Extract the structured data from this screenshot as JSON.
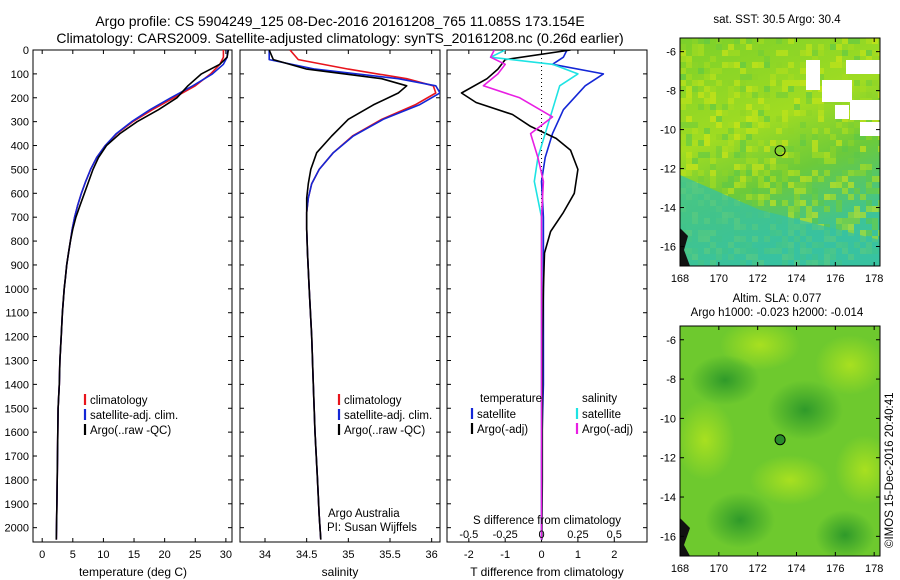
{
  "header": {
    "line1": "Argo profile: CS 5904249_125 08-Dec-2016 20161208_765 11.085S 173.154E",
    "line2": "Climatology: CARS2009. Satellite-adjusted climatology: synTS_20161208.nc (0.26d earlier)"
  },
  "colors": {
    "climatology": "#e8141c",
    "satellite": "#1427d6",
    "argo": "#000000",
    "sat_salinity": "#1ee3e3",
    "argo_salinity": "#e81fe3"
  },
  "chart_data": [
    {
      "type": "line",
      "id": "temperature",
      "xlabel": "temperature (deg C)",
      "ylabel": "",
      "xlim": [
        -1.5,
        31
      ],
      "ylim": [
        2060,
        0
      ],
      "xticks": [
        0,
        5,
        10,
        15,
        20,
        25,
        30
      ],
      "yticks": [
        0,
        100,
        200,
        300,
        400,
        500,
        600,
        700,
        800,
        900,
        1000,
        1100,
        1200,
        1300,
        1400,
        1500,
        1600,
        1700,
        1800,
        1900,
        2000
      ],
      "legend": [
        "climatology",
        "satellite-adj. clim.",
        "Argo(..raw -QC)"
      ],
      "legend_position": "lower-right",
      "series": [
        {
          "name": "climatology",
          "color_key": "climatology",
          "x": [
            29.6,
            29.6,
            29.0,
            27.5,
            25.0,
            21.5,
            18.0,
            14.8,
            12.2,
            10.3,
            8.9,
            7.9,
            7.1,
            6.4,
            5.8,
            5.3,
            4.9,
            4.6,
            4.3,
            4.0,
            3.8,
            3.6,
            3.3,
            3.1,
            2.9,
            2.8,
            2.6,
            2.5,
            2.4,
            2.3
          ],
          "y": [
            0,
            30,
            60,
            100,
            150,
            200,
            250,
            300,
            350,
            400,
            450,
            500,
            550,
            600,
            650,
            700,
            750,
            800,
            850,
            900,
            950,
            1000,
            1100,
            1200,
            1300,
            1400,
            1500,
            1700,
            1900,
            2050
          ]
        },
        {
          "name": "satellite-adj. clim.",
          "color_key": "satellite",
          "x": [
            30.3,
            30.2,
            29.6,
            27.8,
            24.6,
            21.0,
            17.6,
            14.6,
            12.1,
            10.3,
            8.9,
            7.9,
            7.1,
            6.4,
            5.8,
            5.3,
            4.9,
            4.6,
            4.3,
            4.0,
            3.8,
            3.6,
            3.3,
            3.1,
            2.9,
            2.8,
            2.6,
            2.5,
            2.4,
            2.3
          ],
          "y": [
            0,
            30,
            60,
            100,
            150,
            200,
            250,
            300,
            350,
            400,
            450,
            500,
            550,
            600,
            650,
            700,
            750,
            800,
            850,
            900,
            950,
            1000,
            1100,
            1200,
            1300,
            1400,
            1500,
            1700,
            1900,
            2050
          ]
        },
        {
          "name": "Argo(..raw -QC)",
          "color_key": "argo",
          "x": [
            30.4,
            30.2,
            29.0,
            26.0,
            23.8,
            22.0,
            19.0,
            15.5,
            12.7,
            10.5,
            9.2,
            8.3,
            7.6,
            6.9,
            6.2,
            5.5,
            5.0,
            4.6,
            4.3,
            4.0,
            3.8,
            3.6,
            3.3,
            3.1,
            2.9,
            2.8,
            2.6,
            2.5,
            2.4,
            2.3
          ],
          "y": [
            0,
            30,
            60,
            100,
            150,
            200,
            250,
            300,
            350,
            400,
            450,
            500,
            550,
            600,
            650,
            700,
            750,
            800,
            850,
            900,
            950,
            1000,
            1100,
            1200,
            1300,
            1400,
            1500,
            1700,
            1900,
            2050
          ]
        }
      ]
    },
    {
      "type": "line",
      "id": "salinity",
      "xlabel": "salinity",
      "ylabel": "",
      "xlim": [
        33.7,
        36.1
      ],
      "ylim": [
        2060,
        0
      ],
      "xticks": [
        34,
        34.5,
        35,
        35.5,
        36
      ],
      "legend": [
        "climatology",
        "satellite-adj. clim.",
        "Argo(..raw -QC)"
      ],
      "legend_position": "lower-right",
      "annotation": [
        "Argo Australia",
        "PI: Susan Wijffels"
      ],
      "series": [
        {
          "name": "climatology",
          "color_key": "climatology",
          "x": [
            34.3,
            34.4,
            35.0,
            35.7,
            36.02,
            36.05,
            35.8,
            35.4,
            35.05,
            34.82,
            34.65,
            34.56,
            34.52,
            34.5,
            34.5,
            34.51,
            34.53,
            34.56,
            34.58,
            34.6,
            34.63,
            34.65,
            34.67
          ],
          "y": [
            0,
            40,
            80,
            120,
            150,
            180,
            230,
            290,
            360,
            430,
            500,
            560,
            620,
            680,
            750,
            850,
            1000,
            1200,
            1400,
            1600,
            1800,
            1950,
            2050
          ]
        },
        {
          "name": "satellite-adj. clim.",
          "color_key": "satellite",
          "x": [
            34.05,
            34.05,
            34.6,
            35.6,
            36.05,
            36.1,
            35.85,
            35.42,
            35.06,
            34.82,
            34.65,
            34.56,
            34.52,
            34.5,
            34.5,
            34.51,
            34.53,
            34.56,
            34.58,
            34.6,
            34.63,
            34.65,
            34.67
          ],
          "y": [
            0,
            40,
            80,
            120,
            150,
            180,
            230,
            290,
            360,
            430,
            500,
            560,
            620,
            680,
            750,
            850,
            1000,
            1200,
            1400,
            1600,
            1800,
            1950,
            2050
          ]
        },
        {
          "name": "Argo(..raw -QC)",
          "color_key": "argo",
          "x": [
            34.05,
            34.1,
            34.5,
            35.4,
            35.7,
            35.6,
            35.3,
            35.0,
            34.8,
            34.62,
            34.55,
            34.52,
            34.5,
            34.5,
            34.5,
            34.51,
            34.53,
            34.56,
            34.58,
            34.6,
            34.63,
            34.65,
            34.67
          ],
          "y": [
            0,
            40,
            80,
            120,
            150,
            180,
            230,
            290,
            360,
            430,
            500,
            560,
            620,
            680,
            750,
            850,
            1000,
            1200,
            1400,
            1600,
            1800,
            1950,
            2050
          ]
        }
      ]
    },
    {
      "type": "line",
      "id": "difference",
      "xlabel": "T difference from climatology",
      "xlabel_top": "S difference from climatology",
      "xlim": [
        -2.6,
        2.9
      ],
      "ylim": [
        2060,
        0
      ],
      "xticks": [
        -2,
        -1,
        0,
        1,
        2
      ],
      "xticks_top_labels": [
        "-0.5",
        "-0.25",
        "0",
        "0.25",
        "0.5"
      ],
      "xticks_top_values": [
        -2,
        -1,
        0,
        1,
        2
      ],
      "legend_headers": [
        "temperature",
        "salinity"
      ],
      "legend": [
        "satellite",
        "Argo(-adj)",
        "satellite",
        "Argo(-adj)"
      ],
      "series": [
        {
          "name": "temperature satellite",
          "color_key": "satellite",
          "x": [
            0.7,
            0.6,
            0.3,
            1.7,
            1.2,
            0.6,
            0.3,
            0.1,
            0.0,
            0.05,
            0.05,
            0.05,
            0.05,
            0.0,
            0.0,
            0.0
          ],
          "y": [
            0,
            30,
            60,
            100,
            150,
            250,
            350,
            450,
            550,
            700,
            900,
            1100,
            1400,
            1700,
            1900,
            2050
          ]
        },
        {
          "name": "temperature Argo(-adj)",
          "color_key": "argo",
          "x": [
            0.8,
            -1.0,
            -1.2,
            -1.5,
            -2.2,
            -1.8,
            -0.8,
            -0.3,
            0.4,
            0.8,
            1.0,
            0.9,
            0.6,
            0.25,
            0.08,
            0.05,
            0.03,
            0.02,
            0.02,
            0.01
          ],
          "y": [
            0,
            40,
            80,
            120,
            180,
            220,
            270,
            320,
            370,
            420,
            500,
            600,
            680,
            760,
            850,
            1000,
            1200,
            1500,
            1800,
            2050
          ]
        },
        {
          "name": "salinity satellite",
          "color_key": "sat_salinity",
          "x": [
            -1.0,
            -1.4,
            0.3,
            1.0,
            0.5,
            0.3,
            0.1,
            -0.1,
            -0.2,
            0.0,
            0.0,
            0.0,
            0.0,
            0.0
          ],
          "y": [
            0,
            30,
            60,
            100,
            150,
            250,
            350,
            450,
            550,
            700,
            900,
            1200,
            1600,
            2050
          ]
        },
        {
          "name": "salinity Argo(-adj)",
          "color_key": "argo_salinity",
          "x": [
            -1.3,
            -1.4,
            -1.0,
            -1.2,
            -1.6,
            -0.6,
            0.3,
            -0.3,
            -0.1,
            0.05,
            0.0,
            0.0,
            0.0,
            0.0
          ],
          "y": [
            0,
            30,
            60,
            100,
            150,
            200,
            280,
            350,
            450,
            550,
            700,
            1000,
            1500,
            2050
          ]
        }
      ]
    },
    {
      "type": "heatmap",
      "id": "sst-map",
      "title": "sat. SST: 30.5 Argo: 30.4",
      "xlim": [
        168,
        178.3
      ],
      "ylim": [
        -17,
        -5.3
      ],
      "xticks": [
        168,
        170,
        172,
        174,
        176,
        178
      ],
      "yticks": [
        -6,
        -8,
        -10,
        -12,
        -14,
        -16
      ],
      "marker": {
        "lon": 173.154,
        "lat": -11.085
      }
    },
    {
      "type": "heatmap",
      "id": "sla-map",
      "title": "Altim. SLA: 0.077",
      "subtitle": "Argo h1000: -0.023 h2000: -0.014",
      "xlim": [
        168,
        178.3
      ],
      "ylim": [
        -17,
        -5.3
      ],
      "xticks": [
        168,
        170,
        172,
        174,
        176,
        178
      ],
      "yticks": [
        -6,
        -8,
        -10,
        -12,
        -14,
        -16
      ],
      "marker": {
        "lon": 173.154,
        "lat": -11.085
      }
    }
  ],
  "stamp": "©IMOS 15-Dec-2016 20:40:41"
}
